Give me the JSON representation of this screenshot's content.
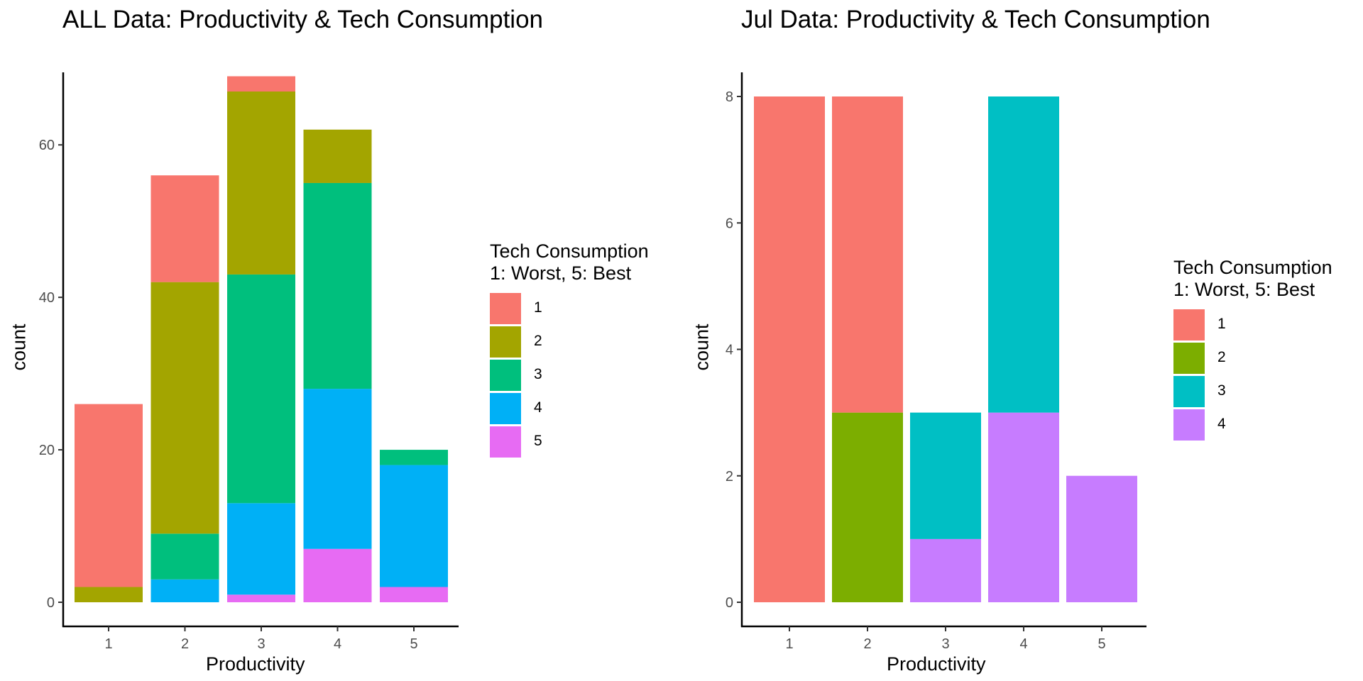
{
  "chart_data": [
    {
      "type": "bar",
      "stacked": true,
      "title": "ALL Data: Productivity & Tech Consumption",
      "xlabel": "Productivity",
      "ylabel": "count",
      "categories": [
        "1",
        "2",
        "3",
        "4",
        "5"
      ],
      "ylim": [
        0,
        70
      ],
      "yticks": [
        0,
        20,
        40,
        60
      ],
      "legend": {
        "title_line1": "Tech Consumption",
        "title_line2": "1: Worst, 5: Best",
        "position": "right"
      },
      "grid": false,
      "series": [
        {
          "name": "1",
          "color": "#F8766D",
          "values": [
            24,
            14,
            2,
            0,
            0
          ]
        },
        {
          "name": "2",
          "color": "#A3A500",
          "values": [
            2,
            33,
            24,
            7,
            0
          ]
        },
        {
          "name": "3",
          "color": "#00BF7D",
          "values": [
            0,
            6,
            30,
            27,
            2
          ]
        },
        {
          "name": "4",
          "color": "#00B0F6",
          "values": [
            0,
            3,
            12,
            21,
            16
          ]
        },
        {
          "name": "5",
          "color": "#E76BF3",
          "values": [
            0,
            0,
            1,
            7,
            2
          ]
        }
      ]
    },
    {
      "type": "bar",
      "stacked": true,
      "title": "Jul Data: Productivity & Tech Consumption",
      "xlabel": "Productivity",
      "ylabel": "count",
      "categories": [
        "1",
        "2",
        "3",
        "4",
        "5"
      ],
      "ylim": [
        0,
        8
      ],
      "yticks": [
        0,
        2,
        4,
        6,
        8
      ],
      "legend": {
        "title_line1": "Tech Consumption",
        "title_line2": "1: Worst, 5: Best",
        "position": "right"
      },
      "grid": false,
      "series": [
        {
          "name": "1",
          "color": "#F8766D",
          "values": [
            8,
            5,
            0,
            0,
            0
          ]
        },
        {
          "name": "2",
          "color": "#7CAE00",
          "values": [
            0,
            3,
            0,
            0,
            0
          ]
        },
        {
          "name": "3",
          "color": "#00BFC4",
          "values": [
            0,
            0,
            2,
            5,
            0
          ]
        },
        {
          "name": "4",
          "color": "#C77CFF",
          "values": [
            0,
            0,
            1,
            3,
            2
          ]
        }
      ]
    }
  ]
}
